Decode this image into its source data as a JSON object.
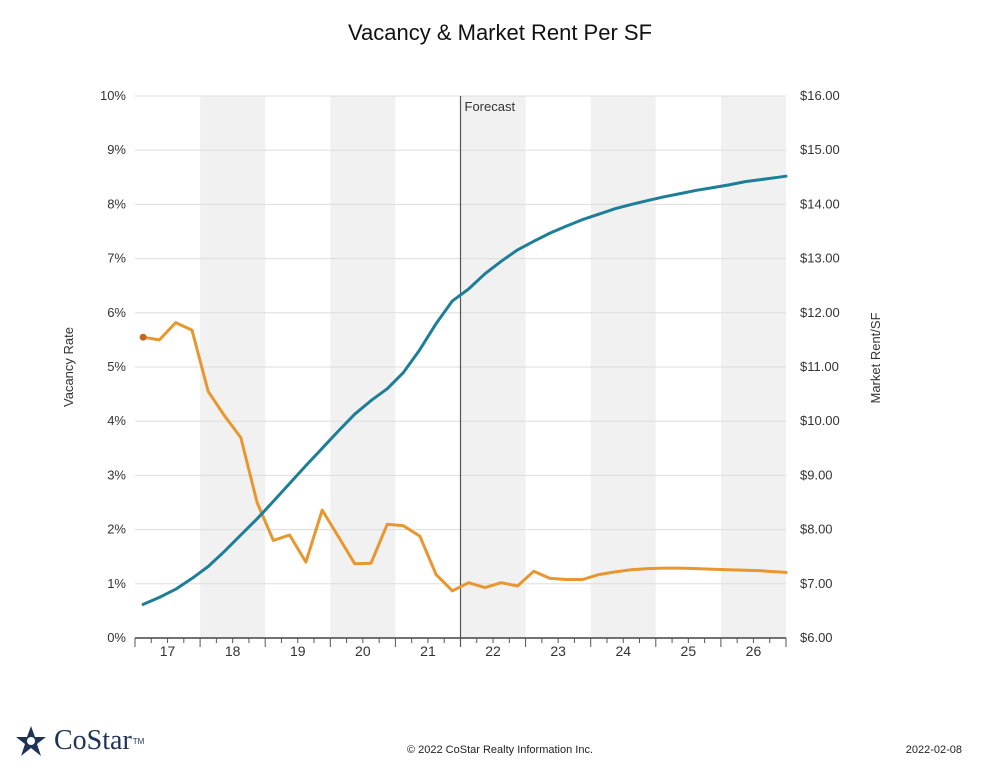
{
  "chart_data": {
    "type": "line",
    "title": "Vacancy & Market Rent Per SF",
    "ylabel_left": "Vacancy Rate",
    "ylabel_right": "Market Rent/SF",
    "forecast_label": "Forecast",
    "forecast_x": 21.5,
    "x_range": [
      16.5,
      26.5
    ],
    "ylim_left": [
      0,
      10
    ],
    "ylim_right": [
      6,
      16
    ],
    "left_ticks": [
      {
        "v": 0,
        "label": "0%"
      },
      {
        "v": 1,
        "label": "1%"
      },
      {
        "v": 2,
        "label": "2%"
      },
      {
        "v": 3,
        "label": "3%"
      },
      {
        "v": 4,
        "label": "4%"
      },
      {
        "v": 5,
        "label": "5%"
      },
      {
        "v": 6,
        "label": "6%"
      },
      {
        "v": 7,
        "label": "7%"
      },
      {
        "v": 8,
        "label": "8%"
      },
      {
        "v": 9,
        "label": "9%"
      },
      {
        "v": 10,
        "label": "10%"
      }
    ],
    "right_ticks": [
      {
        "v": 6,
        "label": "$6.00"
      },
      {
        "v": 7,
        "label": "$7.00"
      },
      {
        "v": 8,
        "label": "$8.00"
      },
      {
        "v": 9,
        "label": "$9.00"
      },
      {
        "v": 10,
        "label": "$10.00"
      },
      {
        "v": 11,
        "label": "$11.00"
      },
      {
        "v": 12,
        "label": "$12.00"
      },
      {
        "v": 13,
        "label": "$13.00"
      },
      {
        "v": 14,
        "label": "$14.00"
      },
      {
        "v": 15,
        "label": "$15.00"
      },
      {
        "v": 16,
        "label": "$16.00"
      }
    ],
    "x_labels": [
      {
        "v": 17,
        "label": "17"
      },
      {
        "v": 18,
        "label": "18"
      },
      {
        "v": 19,
        "label": "19"
      },
      {
        "v": 20,
        "label": "20"
      },
      {
        "v": 21,
        "label": "21"
      },
      {
        "v": 22,
        "label": "22"
      },
      {
        "v": 23,
        "label": "23"
      },
      {
        "v": 24,
        "label": "24"
      },
      {
        "v": 25,
        "label": "25"
      },
      {
        "v": 26,
        "label": "26"
      }
    ],
    "shaded_bands": [
      [
        17.5,
        18.5
      ],
      [
        19.5,
        20.5
      ],
      [
        21.5,
        22.5
      ],
      [
        23.5,
        24.5
      ],
      [
        25.5,
        26.5
      ]
    ],
    "grid": true,
    "series": [
      {
        "name": "",
        "axis": "left",
        "color": "#e8962e",
        "x": [
          16.625,
          16.875,
          17.125,
          17.375,
          17.625,
          17.875,
          18.125,
          18.375,
          18.625,
          18.875,
          19.125,
          19.375,
          19.625,
          19.875,
          20.125,
          20.375,
          20.625,
          20.875,
          21.125,
          21.375,
          21.625,
          21.875,
          22.125,
          22.375,
          22.625,
          22.875,
          23.125,
          23.375,
          23.625,
          23.875,
          24.125,
          24.375,
          24.625,
          24.875,
          25.125,
          25.375,
          25.625,
          25.875,
          26.125,
          26.375,
          26.5
        ],
        "values": [
          5.55,
          5.5,
          5.82,
          5.68,
          4.55,
          4.1,
          3.7,
          2.5,
          1.8,
          1.9,
          1.4,
          2.36,
          1.87,
          1.37,
          1.38,
          2.1,
          2.07,
          1.88,
          1.17,
          0.87,
          1.02,
          0.93,
          1.02,
          0.96,
          1.23,
          1.1,
          1.08,
          1.08,
          1.17,
          1.22,
          1.26,
          1.28,
          1.29,
          1.29,
          1.28,
          1.27,
          1.26,
          1.25,
          1.24,
          1.22,
          1.21
        ]
      },
      {
        "name": "",
        "axis": "right",
        "color": "#1e7e98",
        "x": [
          16.625,
          16.875,
          17.125,
          17.375,
          17.625,
          17.875,
          18.125,
          18.375,
          18.625,
          18.875,
          19.125,
          19.375,
          19.625,
          19.875,
          20.125,
          20.375,
          20.625,
          20.875,
          21.125,
          21.375,
          21.625,
          21.875,
          22.125,
          22.375,
          22.625,
          22.875,
          23.125,
          23.375,
          23.625,
          23.875,
          24.125,
          24.375,
          24.625,
          24.875,
          25.125,
          25.375,
          25.625,
          25.875,
          26.125,
          26.375,
          26.5
        ],
        "values": [
          6.62,
          6.75,
          6.9,
          7.1,
          7.32,
          7.6,
          7.9,
          8.2,
          8.52,
          8.85,
          9.18,
          9.5,
          9.82,
          10.13,
          10.38,
          10.6,
          10.9,
          11.32,
          11.8,
          12.22,
          12.44,
          12.72,
          12.95,
          13.16,
          13.32,
          13.47,
          13.6,
          13.72,
          13.82,
          13.92,
          14.0,
          14.07,
          14.14,
          14.2,
          14.26,
          14.31,
          14.36,
          14.42,
          14.46,
          14.5,
          14.52
        ]
      }
    ]
  },
  "footer": {
    "brand_name": "CoStar",
    "brand_tm": "TM",
    "copyright": "© 2022 CoStar Realty Information Inc.",
    "date": "2022-02-08"
  }
}
